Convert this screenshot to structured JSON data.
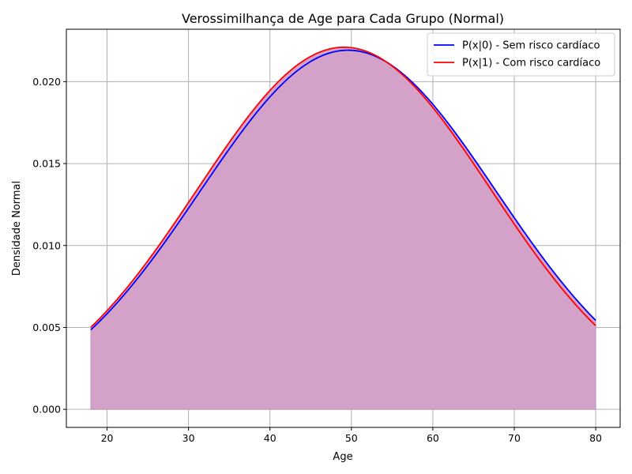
{
  "chart_data": {
    "type": "line",
    "title": "Verossimilhança de Age para Cada Grupo (Normal)",
    "xlabel": "Age",
    "ylabel": "Densidade Normal",
    "xlim": [
      15,
      83
    ],
    "ylim": [
      -0.0011,
      0.0232
    ],
    "x_range": [
      18,
      80
    ],
    "xticks": [
      20,
      30,
      40,
      50,
      60,
      70,
      80
    ],
    "yticks": [
      0.0,
      0.005,
      0.01,
      0.015,
      0.02
    ],
    "ytick_labels": [
      "0.000",
      "0.005",
      "0.010",
      "0.015",
      "0.020"
    ],
    "grid": true,
    "legend_position": "top-right",
    "fill_color": "#d4a2c9",
    "series": [
      {
        "name": "P(x|0) - Sem risco cardíaco",
        "color": "#0000ff",
        "distribution": "normal",
        "mean": 49.6,
        "std": 18.2
      },
      {
        "name": "P(x|1) - Com risco cardíaco",
        "color": "#ff0000",
        "distribution": "normal",
        "mean": 49.1,
        "std": 18.05
      }
    ]
  }
}
